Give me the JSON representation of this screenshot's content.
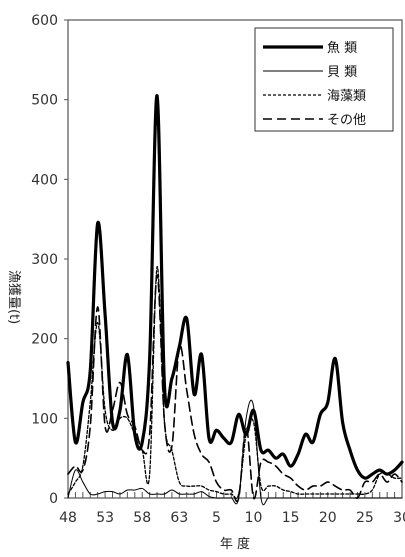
{
  "chart_data": {
    "type": "line",
    "title": "",
    "xlabel": "年 度",
    "ylabel": "漁獲量(t)",
    "ylim": [
      0,
      600
    ],
    "y_ticks": [
      0,
      100,
      200,
      300,
      400,
      500,
      600
    ],
    "x_tick_labels": [
      "48",
      "53",
      "58",
      "63",
      "5",
      "10",
      "15",
      "20",
      "25",
      "30",
      "5"
    ],
    "x": [
      48,
      49,
      50,
      51,
      52,
      53,
      54,
      55,
      56,
      57,
      58,
      59,
      60,
      61,
      62,
      63,
      64,
      65,
      66,
      67,
      68,
      69,
      70,
      71,
      72,
      73,
      74,
      75,
      76,
      77,
      78,
      79,
      80,
      81,
      82,
      83,
      84,
      85,
      86,
      87,
      88,
      89,
      90,
      91,
      92,
      93
    ],
    "legend_position": "top-right",
    "series": [
      {
        "name": "魚 類",
        "style": "thick-solid",
        "values": [
          170,
          70,
          120,
          160,
          345,
          230,
          95,
          110,
          180,
          80,
          70,
          175,
          505,
          140,
          150,
          190,
          225,
          130,
          180,
          75,
          85,
          75,
          70,
          105,
          80,
          110,
          60,
          60,
          50,
          55,
          40,
          55,
          80,
          70,
          105,
          120,
          175,
          95,
          60,
          35,
          25,
          30,
          35,
          30,
          35,
          45
        ]
      },
      {
        "name": "貝 類",
        "style": "thin-solid",
        "values": [
          0,
          35,
          20,
          5,
          5,
          8,
          8,
          5,
          10,
          10,
          12,
          5,
          5,
          5,
          10,
          5,
          5,
          5,
          8,
          2,
          0,
          0,
          0,
          0,
          100,
          115,
          0,
          0,
          0,
          0,
          0,
          0,
          0,
          0,
          0,
          0,
          0,
          0,
          0,
          0,
          0,
          0,
          0,
          0,
          0,
          0
        ]
      },
      {
        "name": "海藻類",
        "style": "short-dashed",
        "values": [
          5,
          20,
          40,
          120,
          220,
          110,
          85,
          100,
          100,
          80,
          60,
          30,
          290,
          95,
          60,
          20,
          15,
          15,
          15,
          10,
          8,
          5,
          5,
          5,
          80,
          95,
          15,
          15,
          15,
          10,
          8,
          5,
          5,
          5,
          5,
          5,
          5,
          5,
          5,
          5,
          5,
          10,
          30,
          30,
          25,
          25
        ]
      },
      {
        "name": "その他",
        "style": "long-dashed",
        "values": [
          30,
          40,
          35,
          90,
          240,
          90,
          110,
          145,
          105,
          90,
          60,
          80,
          280,
          95,
          65,
          190,
          135,
          80,
          55,
          45,
          20,
          10,
          10,
          0,
          90,
          0,
          45,
          45,
          40,
          30,
          25,
          15,
          10,
          15,
          15,
          20,
          15,
          10,
          10,
          0,
          20,
          20,
          30,
          20,
          30,
          20
        ]
      }
    ]
  }
}
